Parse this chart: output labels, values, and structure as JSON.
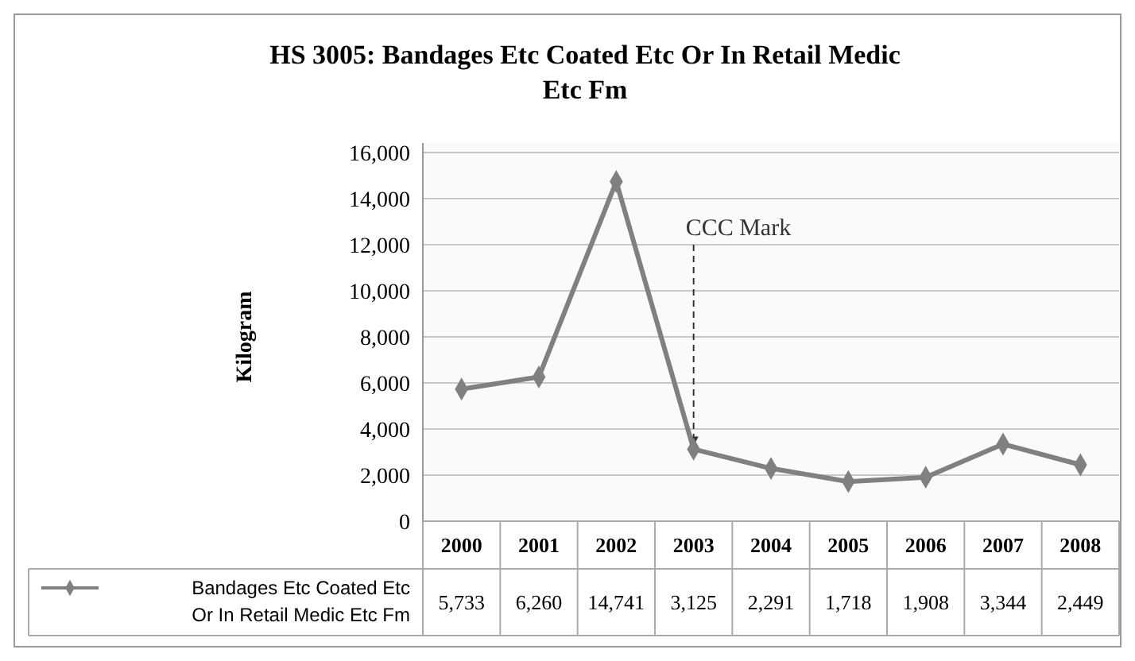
{
  "chart_data": {
    "type": "line",
    "title": "HS 3005: Bandages Etc Coated Etc Or In Retail Medic Etc Fm",
    "ylabel": "Kilogram",
    "categories": [
      "2000",
      "2001",
      "2002",
      "2003",
      "2004",
      "2005",
      "2006",
      "2007",
      "2008"
    ],
    "series": [
      {
        "name": "Bandages Etc Coated Etc Or In Retail Medic Etc Fm",
        "color": "#808080",
        "values": [
          5733,
          6260,
          14741,
          3125,
          2291,
          1718,
          1908,
          3344,
          2449
        ],
        "value_labels": [
          "5,733",
          "6,260",
          "14,741",
          "3,125",
          "2,291",
          "1,718",
          "1,908",
          "3,344",
          "2,449"
        ]
      }
    ],
    "ylim": [
      0,
      16000
    ],
    "yticks": [
      {
        "value": 0,
        "label": "0"
      },
      {
        "value": 2000,
        "label": "2,000"
      },
      {
        "value": 4000,
        "label": "4,000"
      },
      {
        "value": 6000,
        "label": "6,000"
      },
      {
        "value": 8000,
        "label": "8,000"
      },
      {
        "value": 10000,
        "label": "10,000"
      },
      {
        "value": 12000,
        "label": "12,000"
      },
      {
        "value": 14000,
        "label": "14,000"
      },
      {
        "value": 16000,
        "label": "16,000"
      }
    ],
    "grid": "y",
    "marker": "diamond",
    "legend": "bottom",
    "annotations": [
      {
        "text": "CCC Mark",
        "x": "2003",
        "y": 3125
      }
    ]
  }
}
